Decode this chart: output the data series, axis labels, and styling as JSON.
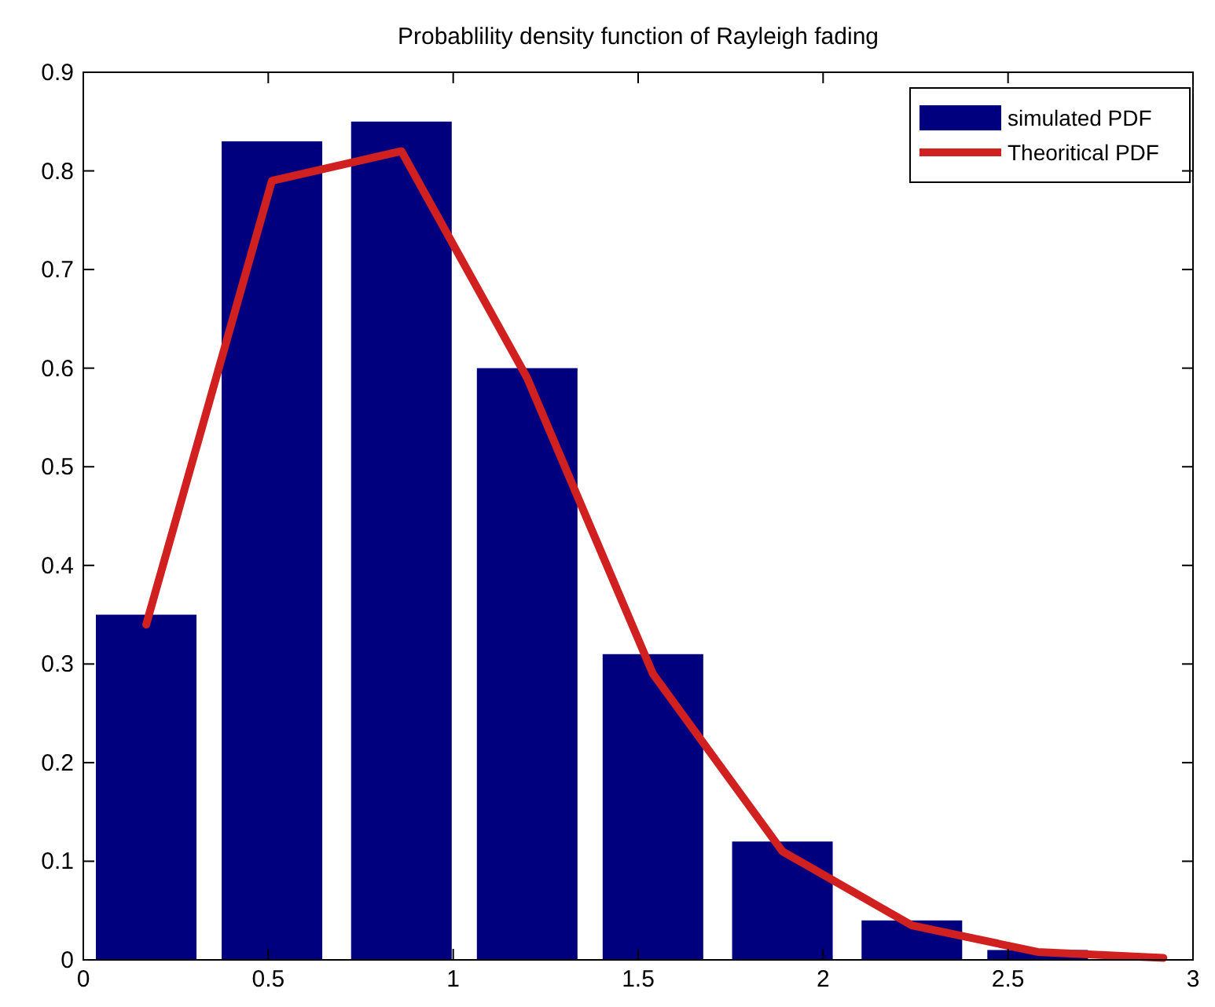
{
  "chart_data": {
    "type": "bar",
    "title": "Probablility density function of Rayleigh fading",
    "x": [
      0.17,
      0.51,
      0.86,
      1.2,
      1.54,
      1.89,
      2.24,
      2.58
    ],
    "series": [
      {
        "name": "simulated PDF",
        "color": "#00007f",
        "values": [
          0.35,
          0.83,
          0.85,
          0.6,
          0.31,
          0.12,
          0.04,
          0.01
        ]
      },
      {
        "name": "Theoritical PDF",
        "type": "line",
        "color": "#d0201f",
        "x": [
          0.17,
          0.51,
          0.86,
          1.2,
          1.54,
          1.89,
          2.24,
          2.58,
          2.92
        ],
        "values": [
          0.34,
          0.79,
          0.82,
          0.59,
          0.29,
          0.11,
          0.035,
          0.008,
          0.002
        ]
      }
    ],
    "xlim": [
      0,
      3
    ],
    "xticks": [
      0,
      0.5,
      1,
      1.5,
      2,
      2.5,
      3
    ],
    "ylim": [
      0,
      0.9
    ],
    "yticks": [
      0,
      0.1,
      0.2,
      0.3,
      0.4,
      0.5,
      0.6,
      0.7,
      0.8,
      0.9
    ],
    "legend": "top right",
    "line_style": "solid",
    "marker": "none",
    "grid": false
  }
}
